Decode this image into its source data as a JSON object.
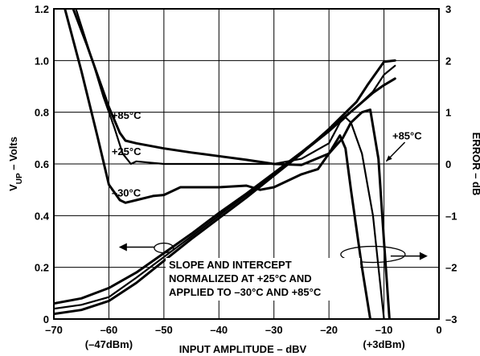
{
  "chart_data": {
    "type": "line",
    "xlabel": "INPUT AMPLITUDE – dBV",
    "ylabel_left": {
      "main": "V",
      "sub": "UP",
      "rest": " – Volts"
    },
    "ylabel_right": "ERROR – dB",
    "xlim": [
      -70,
      0
    ],
    "ylim_left": [
      0,
      1.2
    ],
    "ylim_right": [
      -3,
      3
    ],
    "x_ticks": [
      -70,
      -60,
      -50,
      -40,
      -30,
      -20,
      -10,
      0
    ],
    "x_tick_labels": [
      "–70",
      "–60",
      "–50",
      "–40",
      "–30",
      "–20",
      "–10",
      "0"
    ],
    "y_left_ticks": [
      0,
      0.2,
      0.4,
      0.6,
      0.8,
      1.0,
      1.2
    ],
    "y_left_tick_labels": [
      "0",
      "0.2",
      "0.4",
      "0.6",
      "0.8",
      "1.0",
      "1.2"
    ],
    "y_right_ticks": [
      -3,
      -2,
      -1,
      0,
      1,
      2,
      3
    ],
    "y_right_tick_labels": [
      "–3",
      "–2",
      "–1",
      "0",
      "1",
      "2",
      "3"
    ],
    "extra_x_labels": [
      {
        "x": -60,
        "text": "(–47dBm)"
      },
      {
        "x": -10,
        "text": "(+3dBm)"
      }
    ],
    "grid": true,
    "series": [
      {
        "name": "+85°C",
        "axis": "left",
        "x": [
          -70,
          -65,
          -60,
          -55,
          -50,
          -45,
          -40,
          -35,
          -30,
          -25,
          -20,
          -15,
          -12,
          -10,
          -8
        ],
        "y": [
          0.06,
          0.08,
          0.12,
          0.18,
          0.255,
          0.33,
          0.41,
          0.485,
          0.565,
          0.645,
          0.73,
          0.82,
          0.875,
          0.905,
          0.93
        ]
      },
      {
        "name": "+25°C",
        "axis": "left",
        "x": [
          -70,
          -65,
          -60,
          -55,
          -50,
          -45,
          -40,
          -35,
          -30,
          -25,
          -20,
          -15,
          -12,
          -10,
          -8
        ],
        "y": [
          0.04,
          0.055,
          0.085,
          0.16,
          0.24,
          0.32,
          0.4,
          0.48,
          0.56,
          0.64,
          0.725,
          0.82,
          0.88,
          0.945,
          0.98
        ]
      },
      {
        "name": "–30°C",
        "axis": "left",
        "x": [
          -70,
          -65,
          -60,
          -55,
          -50,
          -45,
          -40,
          -35,
          -30,
          -25,
          -20,
          -15,
          -13,
          -10,
          -8
        ],
        "y": [
          0.02,
          0.035,
          0.07,
          0.14,
          0.225,
          0.31,
          0.39,
          0.47,
          0.555,
          0.64,
          0.735,
          0.84,
          0.905,
          0.995,
          1.0
        ]
      },
      {
        "name": "+85°C",
        "axis": "right",
        "x": [
          -66.5,
          -64,
          -62,
          -60,
          -58,
          -57,
          -55,
          -50,
          -45,
          -40,
          -35,
          -30,
          -25,
          -20,
          -17.5,
          -16,
          -14,
          -12.5,
          -11,
          -10,
          -9
        ],
        "y": [
          3.0,
          2.3,
          1.7,
          1.1,
          0.6,
          0.45,
          0.4,
          0.3,
          0.22,
          0.15,
          0.08,
          0.0,
          -0.02,
          0.2,
          0.5,
          0.8,
          1.0,
          1.05,
          0.1,
          -1.5,
          -3.0
        ]
      },
      {
        "name": "+25°C",
        "axis": "right",
        "x": [
          -66,
          -63,
          -61,
          -59,
          -57.5,
          -56,
          -55,
          -50,
          -45,
          -40,
          -35,
          -30,
          -25,
          -20,
          -18,
          -17,
          -16,
          -14,
          -13,
          -12,
          -11,
          -10
        ],
        "y": [
          3.0,
          2.0,
          1.3,
          0.7,
          0.2,
          0.0,
          0.05,
          0.0,
          0.0,
          0.0,
          0.0,
          0.0,
          0.1,
          0.4,
          0.8,
          0.9,
          0.8,
          0.2,
          -0.4,
          -1.0,
          -2.0,
          -3.0
        ]
      },
      {
        "name": "–30°C",
        "axis": "right",
        "x": [
          -68,
          -65,
          -62,
          -60,
          -58,
          -57,
          -55,
          -52,
          -50,
          -47,
          -45,
          -40,
          -35,
          -32.5,
          -30,
          -25,
          -22,
          -20,
          -18,
          -17,
          -16,
          -14,
          -12.5
        ],
        "y": [
          3.0,
          1.8,
          0.5,
          -0.4,
          -0.7,
          -0.75,
          -0.7,
          -0.62,
          -0.6,
          -0.45,
          -0.45,
          -0.45,
          -0.42,
          -0.5,
          -0.45,
          -0.2,
          -0.1,
          0.2,
          0.55,
          0.3,
          -0.5,
          -2.0,
          -3.0
        ]
      }
    ],
    "annotations": [
      {
        "text": "+85°C",
        "x": -59.5,
        "y_right": 0.95,
        "anchor": "start"
      },
      {
        "text": "+25°C",
        "x": -59.5,
        "y_right": 0.25,
        "anchor": "start"
      },
      {
        "text": "–30°C",
        "x": -59.5,
        "y_right": -0.55,
        "anchor": "start"
      },
      {
        "text": "+85°C",
        "x": -5.8,
        "y_right": 0.55,
        "anchor": "middle"
      }
    ],
    "note_lines": [
      "SLOPE AND INTERCEPT",
      "NORMALIZED AT +25°C AND",
      "APPLIED TO –30°C AND +85°C"
    ],
    "left_axis_arrow": {
      "x": -50,
      "y_left": 0.275
    },
    "right_axis_ellipse": {
      "cx": -12,
      "cy_right": -1.75
    }
  }
}
